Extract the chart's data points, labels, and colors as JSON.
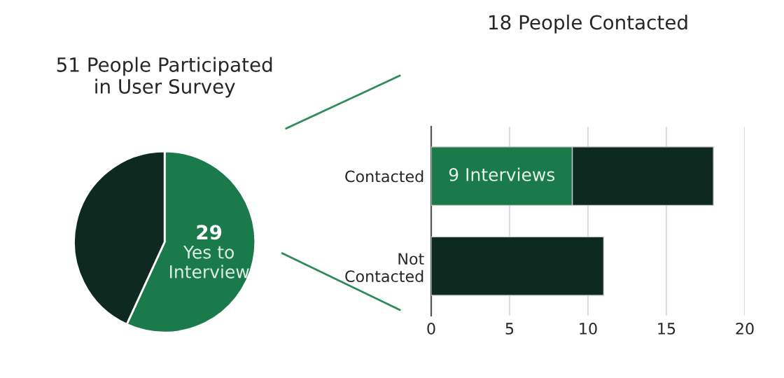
{
  "chart_data": [
    {
      "type": "pie",
      "title": "51 People Participated\nin User Survey",
      "categories": [
        "Yes to Interview",
        null
      ],
      "values": [
        29,
        22
      ],
      "colors": [
        "#1b7a4b",
        "#0e291f"
      ],
      "value_labels": [
        "29",
        null
      ]
    },
    {
      "type": "bar",
      "orientation": "horizontal",
      "stacked": true,
      "title": "18 People Contacted",
      "categories": [
        "Contacted",
        "Not\nContacted"
      ],
      "series": [
        {
          "color": "#1b7a4b",
          "values": [
            9,
            null
          ],
          "value_labels": [
            "9 Interviews",
            null
          ]
        },
        {
          "color": "#0e291f",
          "values": [
            9,
            11
          ]
        }
      ],
      "xlim": [
        0,
        20
      ],
      "xticks": [
        0,
        5,
        10,
        15,
        20
      ],
      "grid": "x",
      "legend": false
    }
  ]
}
